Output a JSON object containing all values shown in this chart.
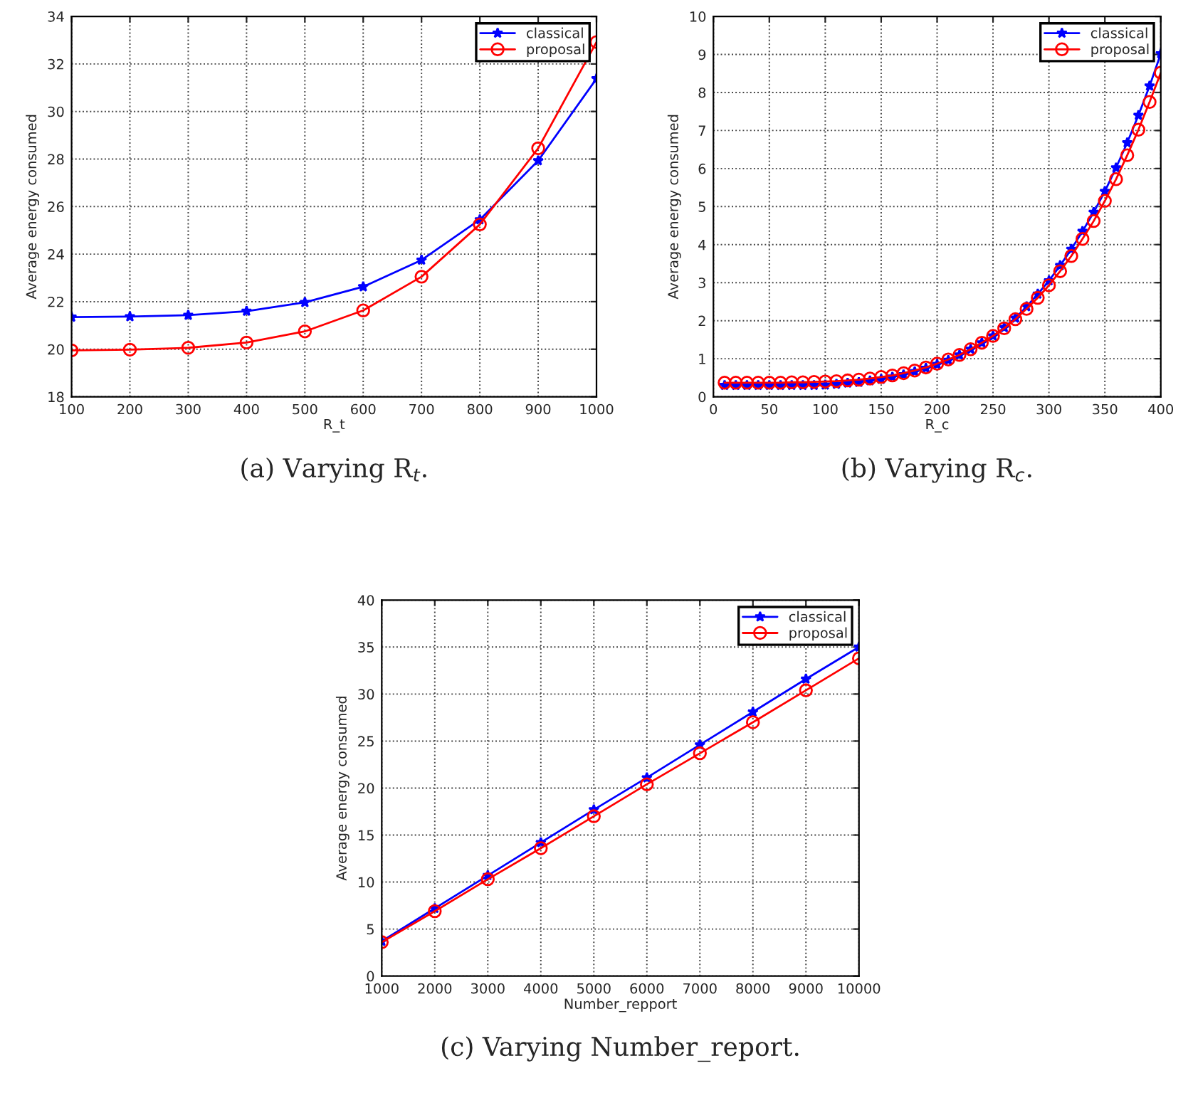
{
  "chart_data": [
    {
      "type": "line",
      "xlabel": "R_t",
      "ylabel": "Average energy consumed",
      "annotations": [
        "(a) Varying R$_{t}$."
      ],
      "x": [
        100,
        200,
        300,
        400,
        500,
        600,
        700,
        800,
        900,
        1000
      ],
      "series": [
        {
          "name": "classical",
          "color": "#0000ff",
          "marker": "star",
          "values": [
            21.35,
            21.37,
            21.43,
            21.6,
            21.97,
            22.63,
            23.75,
            25.45,
            27.93,
            31.38
          ]
        },
        {
          "name": "proposal",
          "color": "#ff0000",
          "marker": "circle",
          "values": [
            19.95,
            19.98,
            20.06,
            20.28,
            20.75,
            21.63,
            23.05,
            25.25,
            28.45,
            32.92
          ]
        }
      ],
      "xlim": [
        100,
        1000
      ],
      "xticks": [
        100,
        200,
        300,
        400,
        500,
        600,
        700,
        800,
        900,
        1000
      ],
      "ylim": [
        18,
        34
      ],
      "yticks": [
        18,
        20,
        22,
        24,
        26,
        28,
        30,
        32,
        34
      ],
      "grid": true,
      "legend": "top right",
      "line_style": "solid"
    },
    {
      "type": "line",
      "xlabel": "R_c",
      "ylabel": "Average energy consumed",
      "annotations": [
        "(b) Varying R$_{c}$."
      ],
      "x": [
        10,
        20,
        30,
        40,
        50,
        60,
        70,
        80,
        90,
        100,
        110,
        120,
        130,
        140,
        150,
        160,
        170,
        180,
        190,
        200,
        210,
        220,
        230,
        240,
        250,
        260,
        270,
        280,
        290,
        300,
        310,
        320,
        330,
        340,
        350,
        360,
        370,
        380,
        390,
        400
      ],
      "series": [
        {
          "name": "classical",
          "color": "#0000ff",
          "marker": "star",
          "values": [
            0.3,
            0.3,
            0.3,
            0.3,
            0.3,
            0.3,
            0.3,
            0.3,
            0.3,
            0.31,
            0.33,
            0.36,
            0.38,
            0.42,
            0.46,
            0.52,
            0.58,
            0.66,
            0.75,
            0.85,
            0.96,
            1.1,
            1.25,
            1.42,
            1.6,
            1.82,
            2.07,
            2.37,
            2.7,
            3.05,
            3.45,
            3.88,
            4.35,
            4.85,
            5.4,
            6.02,
            6.68,
            7.4,
            8.17,
            9.02
          ]
        },
        {
          "name": "proposal",
          "color": "#ff0000",
          "marker": "circle",
          "values": [
            0.37,
            0.37,
            0.37,
            0.37,
            0.37,
            0.37,
            0.38,
            0.38,
            0.39,
            0.4,
            0.41,
            0.43,
            0.45,
            0.48,
            0.52,
            0.56,
            0.62,
            0.69,
            0.77,
            0.87,
            0.98,
            1.1,
            1.25,
            1.42,
            1.6,
            1.8,
            2.04,
            2.31,
            2.6,
            2.93,
            3.3,
            3.7,
            4.15,
            4.62,
            5.15,
            5.72,
            6.35,
            7.02,
            7.75,
            8.52
          ]
        }
      ],
      "xlim": [
        0,
        400
      ],
      "xticks": [
        0,
        50,
        100,
        150,
        200,
        250,
        300,
        350,
        400
      ],
      "ylim": [
        0,
        10
      ],
      "yticks": [
        0,
        1,
        2,
        3,
        4,
        5,
        6,
        7,
        8,
        9,
        10
      ],
      "grid": true,
      "legend": "top right",
      "line_style": "solid"
    },
    {
      "type": "line",
      "xlabel": "Number_repport",
      "ylabel": "Average energy consumed",
      "annotations": [
        "(c) Varying Number_report."
      ],
      "x": [
        1000,
        2000,
        3000,
        4000,
        5000,
        6000,
        7000,
        8000,
        9000,
        10000
      ],
      "series": [
        {
          "name": "classical",
          "color": "#0000ff",
          "marker": "star",
          "values": [
            3.7,
            7.2,
            10.7,
            14.2,
            17.7,
            21.1,
            24.6,
            28.1,
            31.6,
            35.0
          ]
        },
        {
          "name": "proposal",
          "color": "#ff0000",
          "marker": "circle",
          "values": [
            3.6,
            6.9,
            10.3,
            13.6,
            17.0,
            20.4,
            23.7,
            27.0,
            30.4,
            33.8
          ]
        }
      ],
      "xlim": [
        1000,
        10000
      ],
      "xticks": [
        1000,
        2000,
        3000,
        4000,
        5000,
        6000,
        7000,
        8000,
        9000,
        10000
      ],
      "ylim": [
        0,
        40
      ],
      "yticks": [
        0,
        5,
        10,
        15,
        20,
        25,
        30,
        35,
        40
      ],
      "grid": true,
      "legend": "top right",
      "line_style": "solid"
    }
  ]
}
